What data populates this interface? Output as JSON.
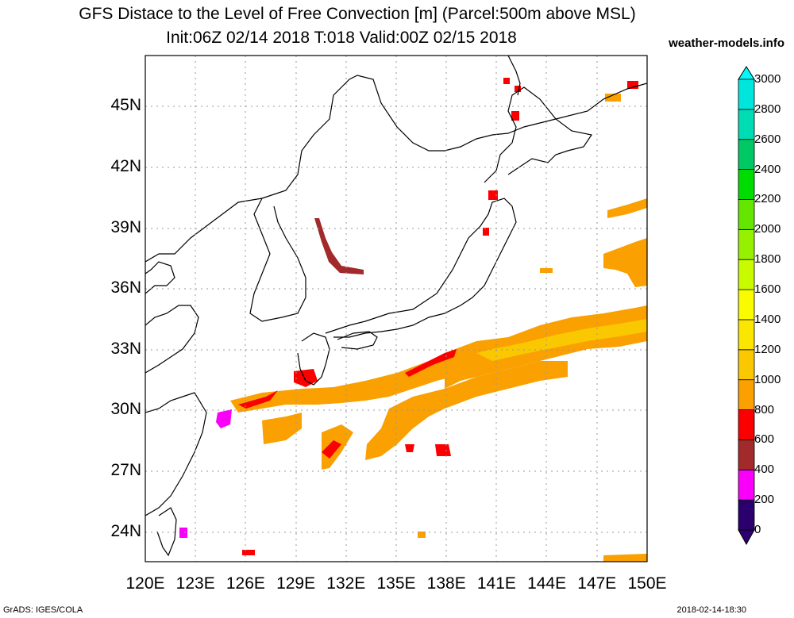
{
  "title_line1": "GFS Distace to the Level of Free Convection [m] (Parcel:500m above MSL)",
  "title_line2": "Init:06Z 02/14 2018 T:018 Valid:00Z 02/15 2018",
  "site": "weather-models.info",
  "footer_left": "GrADS: IGES/COLA",
  "footer_right": "2018-02-14-18:30",
  "lat_labels": [
    "45N",
    "42N",
    "39N",
    "36N",
    "33N",
    "30N",
    "27N",
    "24N"
  ],
  "lon_labels": [
    "120E",
    "123E",
    "126E",
    "129E",
    "132E",
    "135E",
    "138E",
    "141E",
    "144E",
    "147E",
    "150E"
  ],
  "colorbar": {
    "levels": [
      "0",
      "200",
      "400",
      "600",
      "800",
      "1000",
      "1200",
      "1400",
      "1600",
      "1800",
      "2000",
      "2200",
      "2400",
      "2600",
      "2800",
      "3000"
    ],
    "colors": [
      "#2b006e",
      "#fa00fa",
      "#a32a2a",
      "#fa0000",
      "#faa000",
      "#fac800",
      "#fae600",
      "#fafa00",
      "#c8fa00",
      "#96f000",
      "#64e600",
      "#00dc00",
      "#00c864",
      "#00dcb4",
      "#00e6dc",
      "#00fafa"
    ]
  },
  "map": {
    "lon_range": [
      120,
      150
    ],
    "lat_range": [
      22.5,
      47.5
    ],
    "field_colors": {
      "orange": "#faa000",
      "gold": "#fac800",
      "red": "#fa0000",
      "brown": "#a32a2a",
      "magenta": "#fa00fa"
    }
  }
}
